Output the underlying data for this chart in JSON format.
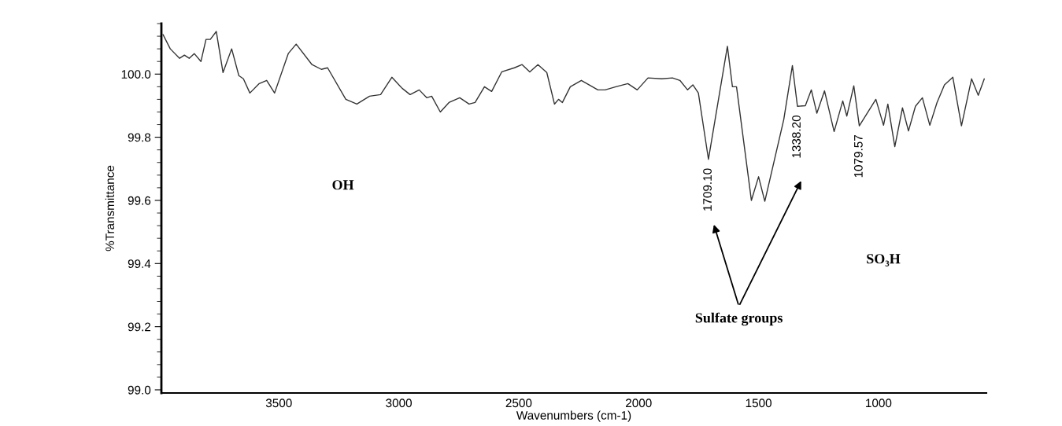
{
  "chart_data": {
    "type": "line",
    "xlabel": "Wavenumbers (cm-1)",
    "ylabel": "%Transmittance",
    "xlim": [
      3990,
      550
    ],
    "ylim": [
      98.99,
      100.16
    ],
    "xticks": [
      3500,
      3000,
      2500,
      2000,
      1500,
      1000
    ],
    "yticks": [
      {
        "value": 99.0,
        "label": "99.0"
      },
      {
        "value": 99.2,
        "label": "99.2"
      },
      {
        "value": 99.4,
        "label": "99.4"
      },
      {
        "value": 99.6,
        "label": "99.6"
      },
      {
        "value": 99.8,
        "label": "99.8"
      },
      {
        "value": 100.0,
        "label": "100.0"
      }
    ],
    "grid": false,
    "legend": false,
    "marker": "none",
    "line_style": "solid",
    "series": [
      {
        "color": "#333333",
        "x": [
          3983,
          3953,
          3914,
          3894,
          3874,
          3853,
          3825,
          3804,
          3786,
          3761,
          3733,
          3697,
          3667,
          3648,
          3621,
          3582,
          3551,
          3518,
          3461,
          3428,
          3362,
          3323,
          3297,
          3221,
          3175,
          3122,
          3076,
          3029,
          2986,
          2953,
          2915,
          2883,
          2863,
          2827,
          2791,
          2746,
          2707,
          2682,
          2643,
          2613,
          2571,
          2518,
          2486,
          2454,
          2420,
          2383,
          2351,
          2334,
          2318,
          2285,
          2239,
          2200,
          2170,
          2140,
          2095,
          2045,
          2006,
          1961,
          1904,
          1859,
          1828,
          1796,
          1774,
          1751,
          1709,
          1630,
          1609,
          1592,
          1530,
          1500,
          1474,
          1395,
          1359,
          1338,
          1305,
          1280,
          1257,
          1225,
          1185,
          1149,
          1132,
          1103,
          1080,
          1011,
          979,
          961,
          932,
          900,
          875,
          846,
          817,
          786,
          756,
          725,
          690,
          654,
          612,
          584,
          559
        ],
        "values": [
          100.125,
          100.08,
          100.05,
          100.06,
          100.05,
          100.065,
          100.04,
          100.11,
          100.11,
          100.135,
          100.005,
          100.08,
          99.995,
          99.985,
          99.94,
          99.97,
          99.98,
          99.94,
          100.065,
          100.095,
          100.03,
          100.015,
          100.02,
          99.92,
          99.905,
          99.93,
          99.935,
          99.99,
          99.955,
          99.935,
          99.95,
          99.925,
          99.93,
          99.88,
          99.91,
          99.925,
          99.905,
          99.91,
          99.96,
          99.945,
          100.007,
          100.02,
          100.03,
          100.007,
          100.03,
          100.005,
          99.905,
          99.92,
          99.91,
          99.96,
          99.98,
          99.963,
          99.95,
          99.95,
          99.96,
          99.97,
          99.95,
          99.988,
          99.985,
          99.988,
          99.98,
          99.95,
          99.966,
          99.94,
          99.73,
          100.088,
          99.96,
          99.96,
          99.6,
          99.675,
          99.597,
          99.856,
          100.027,
          99.898,
          99.9,
          99.95,
          99.876,
          99.947,
          99.818,
          99.915,
          99.867,
          99.963,
          99.836,
          99.92,
          99.838,
          99.905,
          99.77,
          99.893,
          99.82,
          99.898,
          99.925,
          99.838,
          99.91,
          99.966,
          99.99,
          99.836,
          99.985,
          99.933,
          99.985
        ]
      }
    ],
    "annotations": [
      "OH",
      {
        "text": "1709.10",
        "x": 1709.1,
        "y": 99.73
      },
      {
        "text": "1338.20",
        "x": 1338.2,
        "y": 99.898
      },
      {
        "text": "1079.57",
        "x": 1079.57,
        "y": 99.836
      },
      "SO₃H",
      "Sulfate groups"
    ]
  }
}
